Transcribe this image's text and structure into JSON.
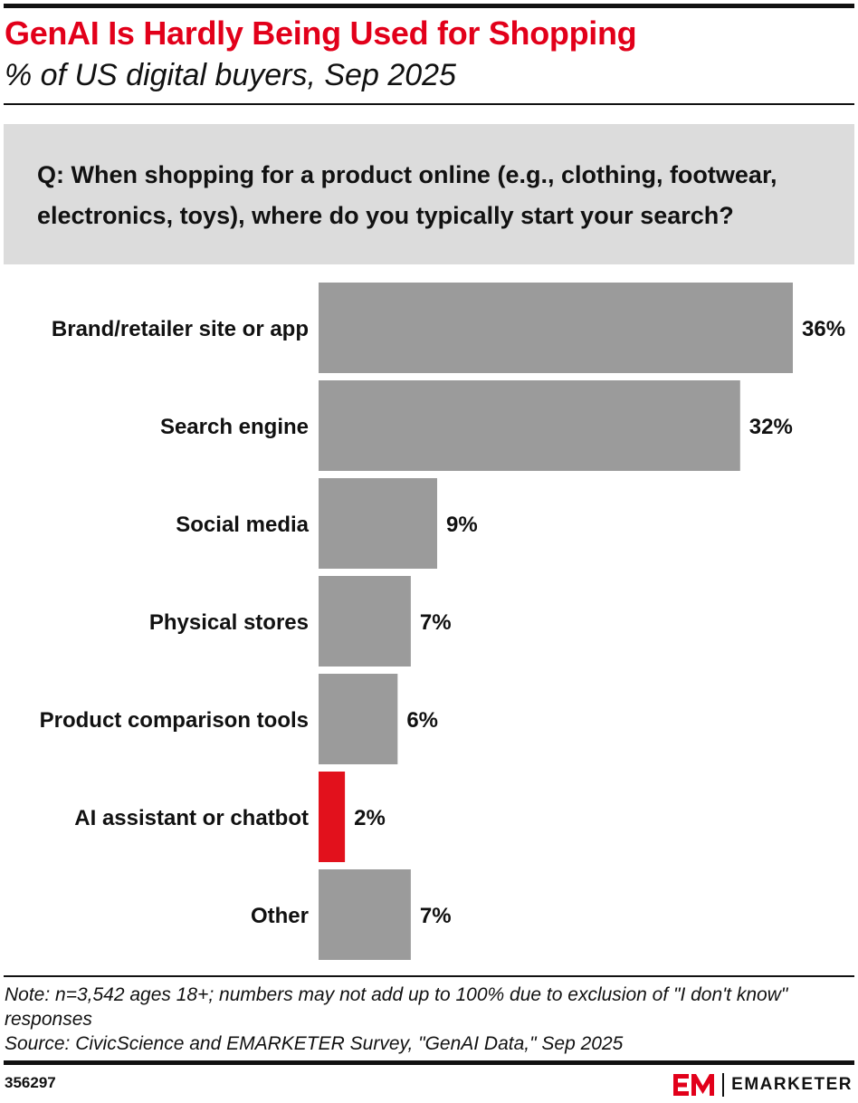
{
  "header": {
    "title": "GenAI Is Hardly Being Used for Shopping",
    "subtitle": "% of US digital buyers, Sep 2025"
  },
  "question": "Q: When shopping for a product online (e.g., clothing, footwear, electronics, toys), where do you typically start your search?",
  "chart_data": {
    "type": "bar",
    "orientation": "horizontal",
    "title": "GenAI Is Hardly Being Used for Shopping",
    "subtitle": "% of US digital buyers, Sep 2025",
    "categories": [
      "Brand/retailer site or app",
      "Search engine",
      "Social media",
      "Physical stores",
      "Product comparison tools",
      "AI assistant or chatbot",
      "Other"
    ],
    "values": [
      36,
      32,
      9,
      7,
      6,
      2,
      7
    ],
    "value_labels": [
      "36%",
      "32%",
      "9%",
      "7%",
      "6%",
      "2%",
      "7%"
    ],
    "highlight_index": 5,
    "colors": {
      "bar": "#9b9b9b",
      "highlight": "#e2111c"
    },
    "xlim": [
      0,
      36
    ],
    "grid": false,
    "legend": "none"
  },
  "footer": {
    "note": "Note: n=3,542 ages 18+; numbers may not add up to 100% due to exclusion of \"I don't know\" responses",
    "source": "Source: CivicScience and EMARKETER Survey, \"GenAI Data,\" Sep 2025",
    "chart_id": "356297",
    "brand": "EMARKETER",
    "brand_mark": "EM"
  },
  "colors": {
    "title": "#e2001a",
    "question_bg": "#dcdcdc",
    "rules": "#111111",
    "logo_red": "#e2001a"
  }
}
